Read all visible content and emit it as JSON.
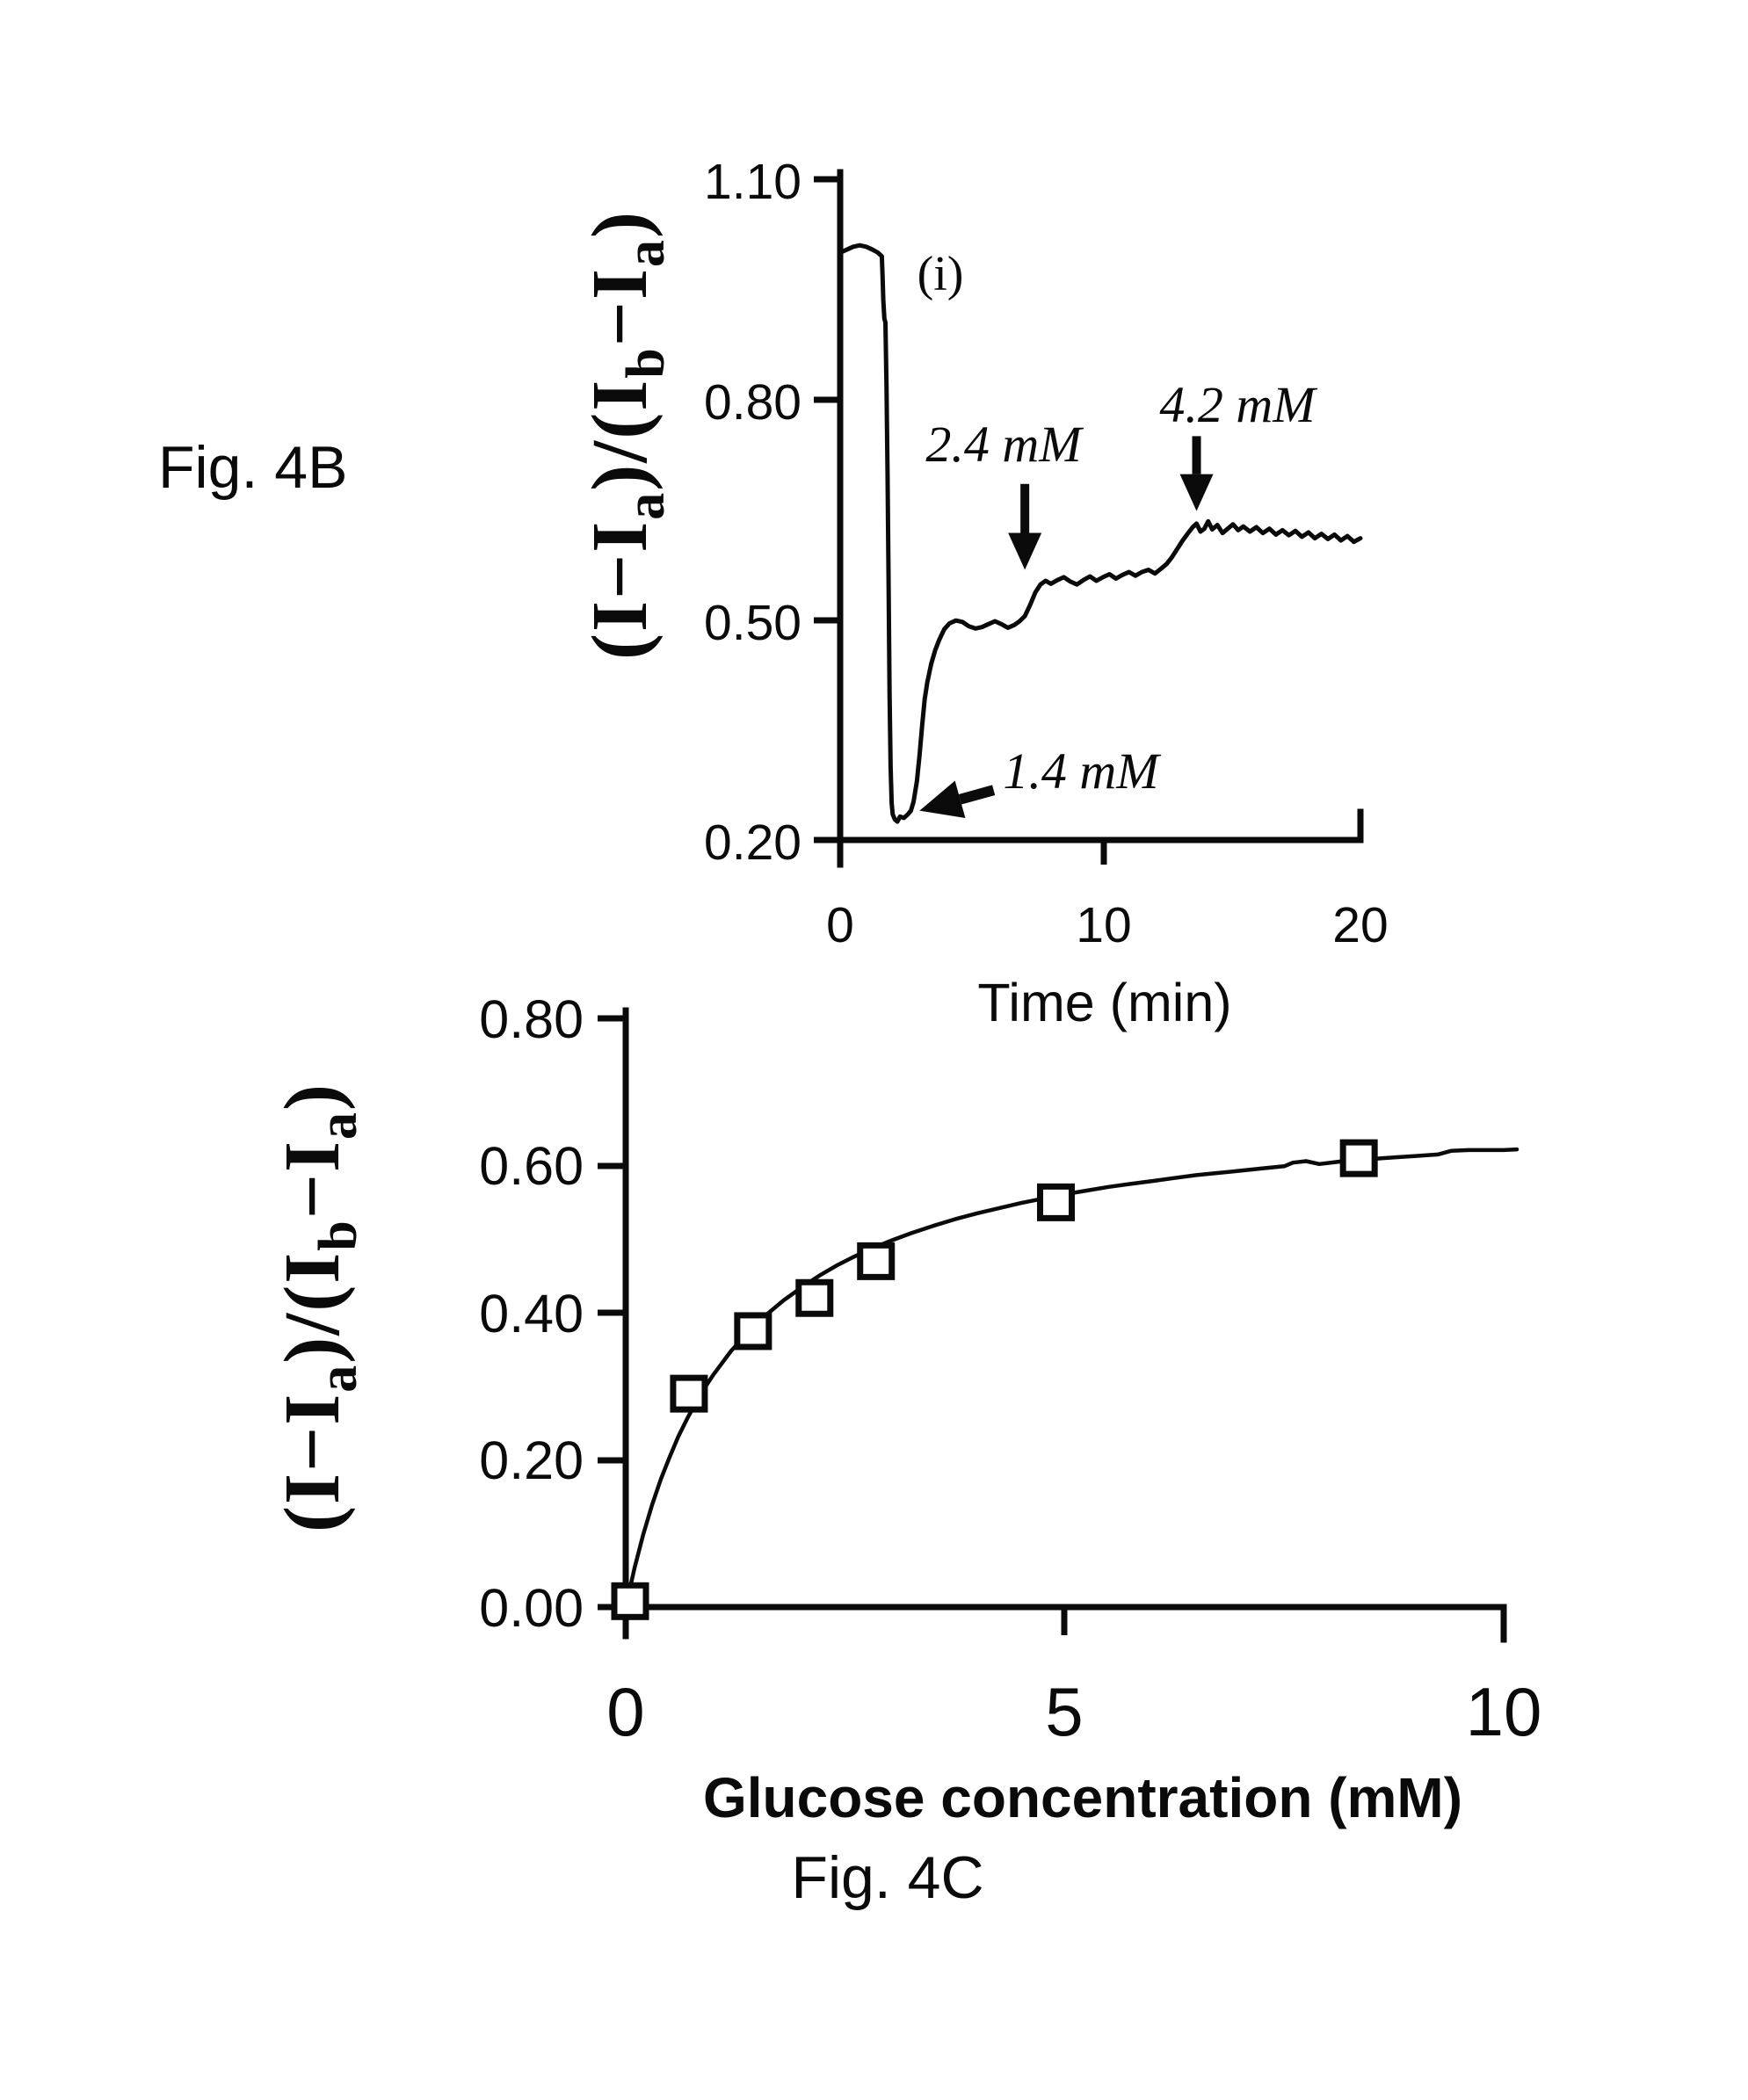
{
  "figure": {
    "fig_b_label": "Fig. 4B",
    "fig_c_label": "Fig. 4C"
  },
  "chart_data": [
    {
      "id": "fig4b",
      "type": "line",
      "title": "",
      "xlabel": "Time (min)",
      "ylabel": "(I−Ia)/(Ib−Ia)",
      "ylabel_parts": [
        "(I−I",
        "a",
        ")/(I",
        "b",
        "−I",
        "a",
        ")"
      ],
      "xlim": [
        0,
        20
      ],
      "ylim": [
        0.2,
        1.1
      ],
      "xticks": [
        "0",
        "10",
        "20"
      ],
      "yticks": [
        "1.10",
        "0.80",
        "0.50",
        "0.20"
      ],
      "grid": false,
      "legend": "none",
      "series": [
        {
          "name": "normalized-intensity-trace",
          "points": [
            [
              0,
              1.0
            ],
            [
              0.25,
              1.004
            ],
            [
              0.5,
              1.008
            ],
            [
              0.75,
              1.01
            ],
            [
              1.0,
              1.008
            ],
            [
              1.25,
              1.004
            ],
            [
              1.45,
              1.0
            ],
            [
              1.6,
              0.995
            ],
            [
              1.63,
              0.97
            ],
            [
              1.66,
              0.935
            ],
            [
              1.7,
              0.91
            ],
            [
              1.74,
              0.905
            ],
            [
              1.78,
              0.82
            ],
            [
              1.82,
              0.7
            ],
            [
              1.86,
              0.55
            ],
            [
              1.9,
              0.4
            ],
            [
              1.94,
              0.3
            ],
            [
              1.98,
              0.25
            ],
            [
              2.02,
              0.235
            ],
            [
              2.1,
              0.228
            ],
            [
              2.2,
              0.225
            ],
            [
              2.3,
              0.232
            ],
            [
              2.45,
              0.23
            ],
            [
              2.6,
              0.235
            ],
            [
              2.72,
              0.24
            ],
            [
              2.82,
              0.252
            ],
            [
              2.95,
              0.28
            ],
            [
              3.05,
              0.315
            ],
            [
              3.15,
              0.355
            ],
            [
              3.25,
              0.392
            ],
            [
              3.35,
              0.415
            ],
            [
              3.5,
              0.44
            ],
            [
              3.65,
              0.458
            ],
            [
              3.8,
              0.472
            ],
            [
              4.0,
              0.487
            ],
            [
              4.2,
              0.495
            ],
            [
              4.45,
              0.499
            ],
            [
              4.7,
              0.497
            ],
            [
              4.95,
              0.491
            ],
            [
              5.2,
              0.488
            ],
            [
              5.45,
              0.49
            ],
            [
              5.7,
              0.494
            ],
            [
              5.95,
              0.498
            ],
            [
              6.2,
              0.494
            ],
            [
              6.45,
              0.489
            ],
            [
              6.7,
              0.493
            ],
            [
              6.9,
              0.498
            ],
            [
              7.1,
              0.505
            ],
            [
              7.3,
              0.52
            ],
            [
              7.5,
              0.537
            ],
            [
              7.7,
              0.548
            ],
            [
              7.9,
              0.553
            ],
            [
              8.1,
              0.549
            ],
            [
              8.35,
              0.554
            ],
            [
              8.6,
              0.558
            ],
            [
              8.85,
              0.552
            ],
            [
              9.1,
              0.548
            ],
            [
              9.35,
              0.554
            ],
            [
              9.6,
              0.559
            ],
            [
              9.85,
              0.553
            ],
            [
              10.1,
              0.558
            ],
            [
              10.35,
              0.562
            ],
            [
              10.6,
              0.556
            ],
            [
              10.85,
              0.561
            ],
            [
              11.1,
              0.565
            ],
            [
              11.35,
              0.56
            ],
            [
              11.6,
              0.565
            ],
            [
              11.85,
              0.568
            ],
            [
              12.1,
              0.563
            ],
            [
              12.35,
              0.57
            ],
            [
              12.55,
              0.576
            ],
            [
              12.75,
              0.585
            ],
            [
              12.95,
              0.596
            ],
            [
              13.15,
              0.607
            ],
            [
              13.35,
              0.617
            ],
            [
              13.55,
              0.626
            ],
            [
              13.7,
              0.631
            ],
            [
              13.85,
              0.62
            ],
            [
              14.0,
              0.624
            ],
            [
              14.15,
              0.634
            ],
            [
              14.3,
              0.623
            ],
            [
              14.5,
              0.629
            ],
            [
              14.7,
              0.618
            ],
            [
              14.9,
              0.624
            ],
            [
              15.1,
              0.63
            ],
            [
              15.3,
              0.622
            ],
            [
              15.5,
              0.627
            ],
            [
              15.75,
              0.62
            ],
            [
              16.0,
              0.626
            ],
            [
              16.25,
              0.618
            ],
            [
              16.5,
              0.624
            ],
            [
              16.75,
              0.616
            ],
            [
              17.0,
              0.622
            ],
            [
              17.25,
              0.615
            ],
            [
              17.5,
              0.621
            ],
            [
              17.75,
              0.613
            ],
            [
              18.0,
              0.619
            ],
            [
              18.25,
              0.611
            ],
            [
              18.5,
              0.617
            ],
            [
              18.75,
              0.61
            ],
            [
              19.0,
              0.616
            ],
            [
              19.25,
              0.608
            ],
            [
              19.5,
              0.614
            ],
            [
              19.75,
              0.606
            ],
            [
              20.0,
              0.611
            ]
          ]
        }
      ],
      "annotations": [
        {
          "label": "(i)"
        },
        {
          "label": "2.4 mM",
          "arrow": {
            "from": [
              7.1,
              0.685
            ],
            "to": [
              7.1,
              0.568
            ]
          }
        },
        {
          "label": "4.2 mM",
          "arrow": {
            "from": [
              13.7,
              0.75
            ],
            "to": [
              13.7,
              0.648
            ]
          }
        },
        {
          "label": "1.4 mM",
          "arrow": {
            "from": [
              5.9,
              0.268
            ],
            "to": [
              3.05,
              0.24
            ]
          }
        }
      ]
    },
    {
      "id": "fig4c",
      "type": "scatter",
      "title": "",
      "xlabel": "Glucose concentration (mM)",
      "ylabel": "(I−Ia)/(Ib−Ia)",
      "ylabel_parts": [
        "(I−I",
        "a",
        ")/(I",
        "b",
        "−I",
        "a",
        ")"
      ],
      "xlim": [
        0,
        10
      ],
      "ylim": [
        0.0,
        0.8
      ],
      "xticks": [
        "0",
        "5",
        "10"
      ],
      "yticks": [
        "0.80",
        "0.60",
        "0.40",
        "0.20",
        "0.00"
      ],
      "grid": false,
      "legend": "none",
      "marker": "open-square",
      "points": [
        [
          0.05,
          0.008
        ],
        [
          0.72,
          0.29
        ],
        [
          1.45,
          0.375
        ],
        [
          2.15,
          0.42
        ],
        [
          2.85,
          0.47
        ],
        [
          4.9,
          0.55
        ],
        [
          8.35,
          0.61
        ]
      ],
      "fit_curve": {
        "name": "binding-isotherm-fit",
        "points": [
          [
            0,
            0
          ],
          [
            0.1,
            0.053
          ],
          [
            0.2,
            0.099
          ],
          [
            0.3,
            0.139
          ],
          [
            0.4,
            0.174
          ],
          [
            0.5,
            0.204
          ],
          [
            0.6,
            0.232
          ],
          [
            0.7,
            0.256
          ],
          [
            0.8,
            0.278
          ],
          [
            0.9,
            0.298
          ],
          [
            1.0,
            0.316
          ],
          [
            1.2,
            0.348
          ],
          [
            1.4,
            0.374
          ],
          [
            1.6,
            0.397
          ],
          [
            1.8,
            0.417
          ],
          [
            2.0,
            0.434
          ],
          [
            2.2,
            0.45
          ],
          [
            2.4,
            0.464
          ],
          [
            2.6,
            0.476
          ],
          [
            2.8,
            0.487
          ],
          [
            3.0,
            0.497
          ],
          [
            3.25,
            0.508
          ],
          [
            3.5,
            0.518
          ],
          [
            3.75,
            0.527
          ],
          [
            4.0,
            0.535
          ],
          [
            4.25,
            0.542
          ],
          [
            4.5,
            0.549
          ],
          [
            4.75,
            0.555
          ],
          [
            5.0,
            0.561
          ],
          [
            5.25,
            0.566
          ],
          [
            5.5,
            0.571
          ],
          [
            5.75,
            0.575
          ],
          [
            6.0,
            0.579
          ],
          [
            6.25,
            0.583
          ],
          [
            6.5,
            0.587
          ],
          [
            6.75,
            0.59
          ],
          [
            7.0,
            0.593
          ],
          [
            7.25,
            0.596
          ],
          [
            7.5,
            0.599
          ],
          [
            7.6,
            0.604
          ],
          [
            7.75,
            0.606
          ],
          [
            7.9,
            0.602
          ],
          [
            8.25,
            0.607
          ],
          [
            8.5,
            0.609
          ],
          [
            8.75,
            0.611
          ],
          [
            9.0,
            0.613
          ],
          [
            9.25,
            0.615
          ],
          [
            9.4,
            0.62
          ],
          [
            9.6,
            0.621
          ],
          [
            10.0,
            0.621
          ],
          [
            10.15,
            0.622
          ]
        ]
      }
    }
  ]
}
